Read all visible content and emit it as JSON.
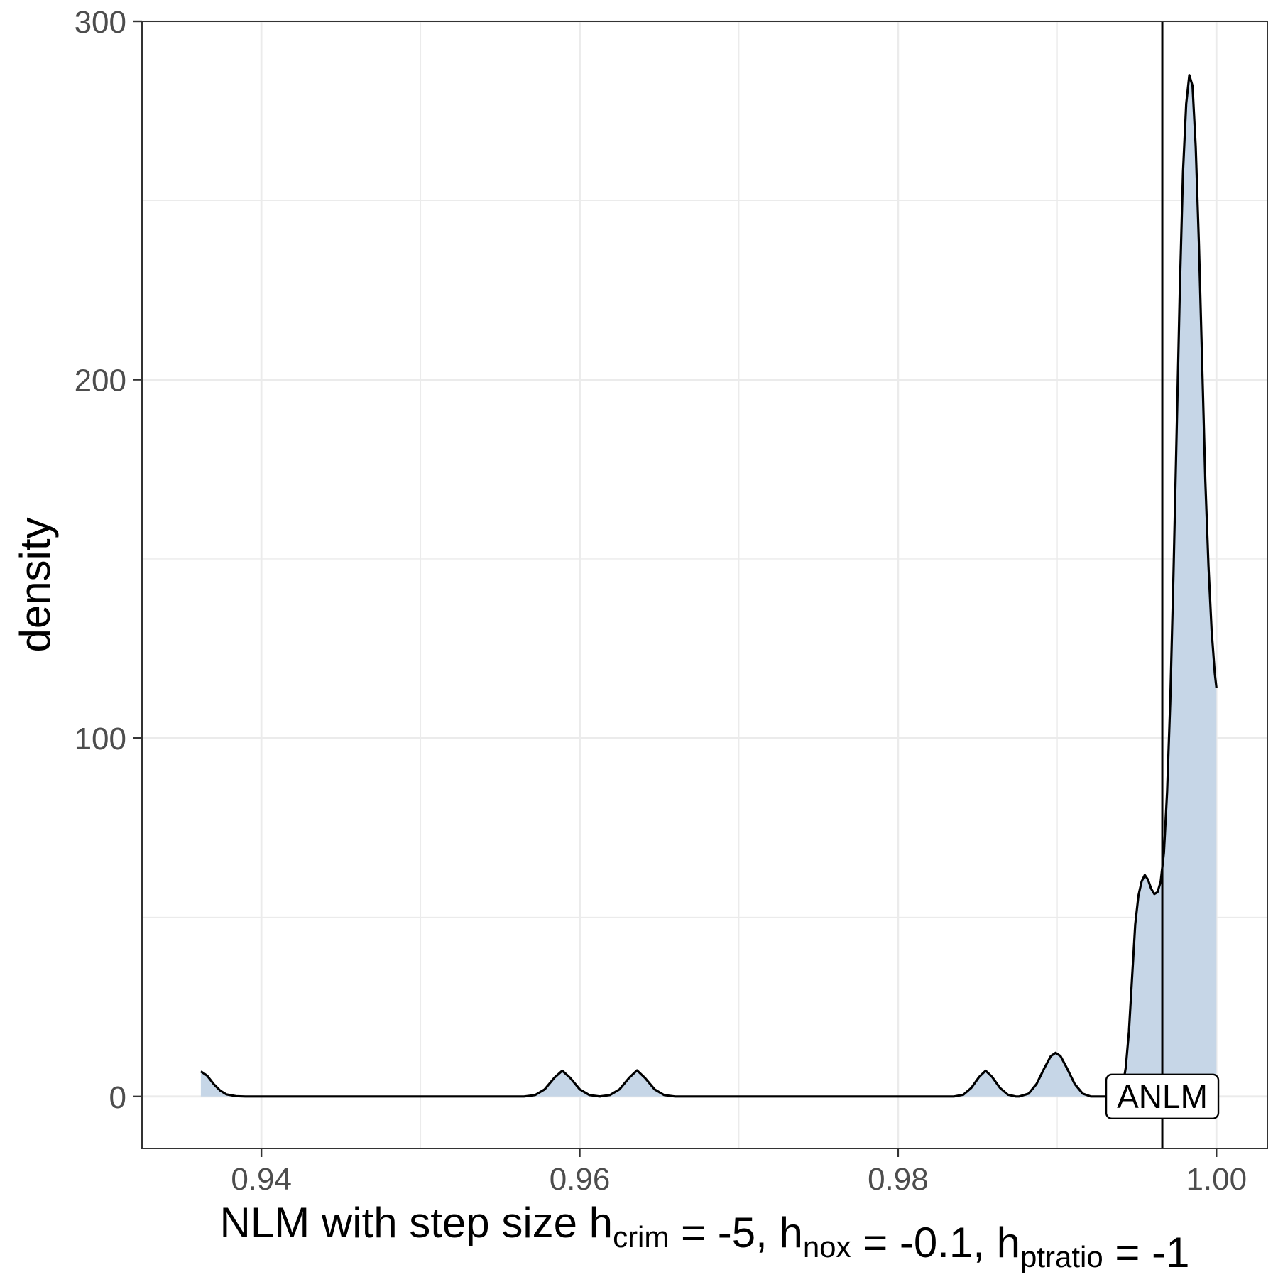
{
  "chart_data": {
    "type": "area",
    "title": "",
    "xlabel": {
      "parts": [
        {
          "text": "NLM with step size h",
          "sub": "crim"
        },
        {
          "text": " = -5, h",
          "sub": "nox"
        },
        {
          "text": " = -0.1, h",
          "sub": "ptratio"
        },
        {
          "text": " = -1",
          "sub": ""
        }
      ]
    },
    "ylabel": "density",
    "xlim": [
      0.9325,
      1.0032
    ],
    "ylim": [
      -14.5,
      300
    ],
    "x_ticks": [
      0.94,
      0.96,
      0.98,
      1.0
    ],
    "x_tick_labels": [
      "0.94",
      "0.96",
      "0.98",
      "1.00"
    ],
    "x_minor_ticks": [
      0.95,
      0.97,
      0.99
    ],
    "y_ticks": [
      0,
      100,
      200,
      300
    ],
    "y_tick_labels": [
      "0",
      "100",
      "200",
      "300"
    ],
    "y_minor_ticks": [
      50,
      150,
      250
    ],
    "grid": true,
    "series": [
      {
        "fill_color": "#c6d6e7",
        "line_color": "#000000",
        "points": [
          [
            0.9362,
            7.0
          ],
          [
            0.9366,
            5.8
          ],
          [
            0.937,
            3.5
          ],
          [
            0.9374,
            1.7
          ],
          [
            0.9378,
            0.6
          ],
          [
            0.9384,
            0.1
          ],
          [
            0.939,
            0
          ],
          [
            0.9565,
            0
          ],
          [
            0.9572,
            0.4
          ],
          [
            0.9578,
            2.0
          ],
          [
            0.9584,
            5.2
          ],
          [
            0.9589,
            7.2
          ],
          [
            0.9594,
            5.2
          ],
          [
            0.96,
            2.0
          ],
          [
            0.9606,
            0.4
          ],
          [
            0.9613,
            0
          ],
          [
            0.9612,
            0
          ],
          [
            0.9619,
            0.4
          ],
          [
            0.9625,
            2.0
          ],
          [
            0.9631,
            5.2
          ],
          [
            0.9636,
            7.3
          ],
          [
            0.9641,
            5.2
          ],
          [
            0.9647,
            2.0
          ],
          [
            0.9653,
            0.4
          ],
          [
            0.966,
            0
          ],
          [
            0.9835,
            0
          ],
          [
            0.9841,
            0.5
          ],
          [
            0.9846,
            2.4
          ],
          [
            0.9851,
            5.5
          ],
          [
            0.9855,
            7.2
          ],
          [
            0.9859,
            5.5
          ],
          [
            0.9864,
            2.4
          ],
          [
            0.9869,
            0.5
          ],
          [
            0.9874,
            0
          ],
          [
            0.9876,
            0
          ],
          [
            0.9882,
            0.8
          ],
          [
            0.9887,
            3.5
          ],
          [
            0.9892,
            8.0
          ],
          [
            0.9896,
            11.3
          ],
          [
            0.9899,
            12.2
          ],
          [
            0.9902,
            11.3
          ],
          [
            0.9906,
            8.0
          ],
          [
            0.9911,
            3.5
          ],
          [
            0.9916,
            0.8
          ],
          [
            0.9921,
            0
          ],
          [
            0.9937,
            0
          ],
          [
            0.9939,
            0.6
          ],
          [
            0.9941,
            2.5
          ],
          [
            0.9943,
            8.0
          ],
          [
            0.9945,
            18.0
          ],
          [
            0.9947,
            33.0
          ],
          [
            0.9949,
            48.0
          ],
          [
            0.9951,
            56.0
          ],
          [
            0.9953,
            60.0
          ],
          [
            0.9955,
            61.8
          ],
          [
            0.9957,
            60.5
          ],
          [
            0.9959,
            58.0
          ],
          [
            0.9961,
            56.5
          ],
          [
            0.9963,
            57.0
          ],
          [
            0.9965,
            60.0
          ],
          [
            0.9967,
            68.0
          ],
          [
            0.9969,
            85.0
          ],
          [
            0.9971,
            110.0
          ],
          [
            0.9973,
            145.0
          ],
          [
            0.9975,
            185.0
          ],
          [
            0.9977,
            225.0
          ],
          [
            0.9979,
            258.0
          ],
          [
            0.9981,
            277.0
          ],
          [
            0.9983,
            285.0
          ],
          [
            0.9985,
            282.0
          ],
          [
            0.9987,
            265.0
          ],
          [
            0.9989,
            238.0
          ],
          [
            0.9991,
            205.0
          ],
          [
            0.9993,
            172.0
          ],
          [
            0.9995,
            148.0
          ],
          [
            0.9997,
            130.0
          ],
          [
            0.9999,
            118.0
          ],
          [
            1.0,
            114.0
          ]
        ]
      }
    ],
    "reference_line": {
      "x": 0.9966
    },
    "annotations": [
      {
        "text": "ANLM",
        "x": 0.9966,
        "y": 0
      }
    ]
  }
}
